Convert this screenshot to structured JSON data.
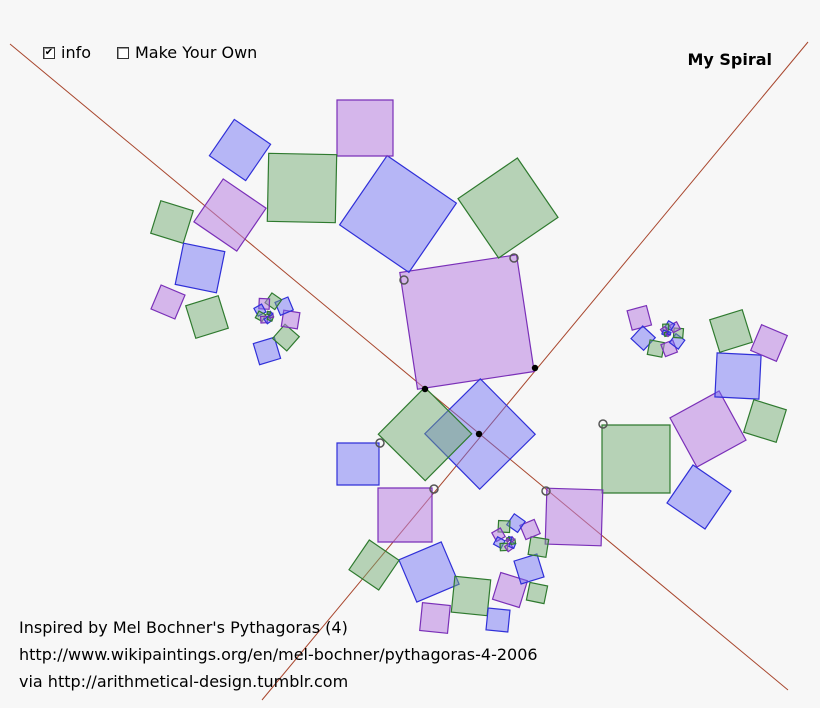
{
  "controls": {
    "info": {
      "label": "info",
      "checked": true
    },
    "make_own": {
      "label": "Make Your Own",
      "checked": false
    }
  },
  "title": "My Spiral",
  "credits": [
    "Inspired by Mel Bochner's Pythagoras (4)",
    "http://www.wikipaintings.org/en/mel-bochner/pythagoras-4-2006",
    "via http://arithmetical-design.tumblr.com"
  ],
  "colors": {
    "blue": "#6e6ef5",
    "green": "#6eaa6e",
    "purple": "#b982e1",
    "line": "#a8462d",
    "background": "#f7f7f7"
  }
}
